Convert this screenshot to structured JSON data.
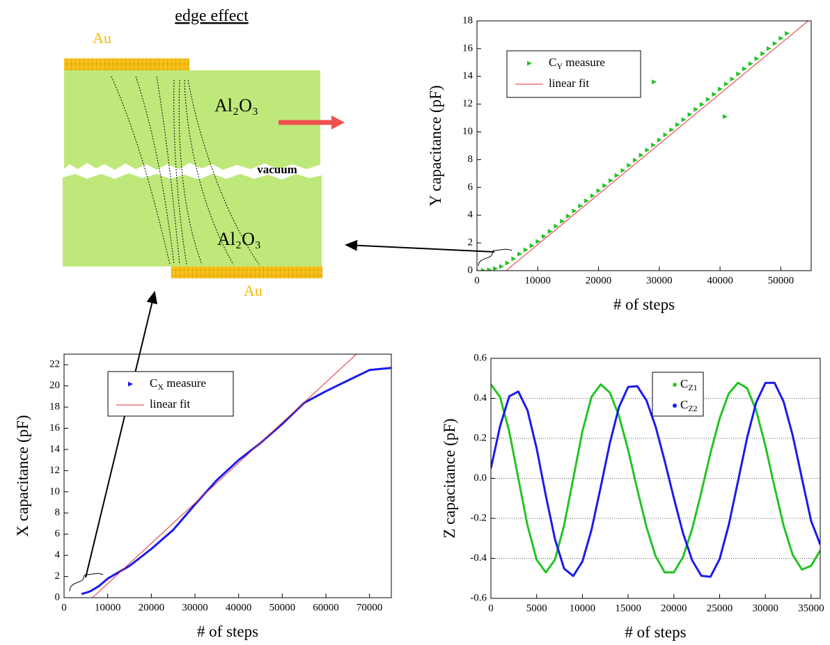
{
  "diagram": {
    "title": "edge effect",
    "labels": [
      "Au",
      "Al₂O₃",
      "vacuum",
      "Al₂O₃",
      "Au"
    ]
  },
  "chart_data": [
    {
      "type": "line",
      "xlabel": "# of steps",
      "ylabel": "Y capacitance (pF)",
      "xlim": [
        0,
        55000
      ],
      "xticks": [
        0,
        10000,
        20000,
        30000,
        40000,
        50000
      ],
      "ylim": [
        0,
        18
      ],
      "yticks": [
        0,
        2,
        4,
        6,
        8,
        10,
        12,
        14,
        16,
        18
      ],
      "grid": false,
      "series": [
        {
          "name": "CY measure",
          "color": "#22c422",
          "style": "markers",
          "marker": "triangle",
          "x": [
            0,
            1000,
            2000,
            3000,
            4000,
            5000,
            6000,
            7000,
            8000,
            9000,
            10000,
            11000,
            12000,
            13000,
            14000,
            15000,
            16000,
            17000,
            18000,
            19000,
            20000,
            21000,
            22000,
            23000,
            24000,
            25000,
            26000,
            27000,
            28000,
            29000,
            29100,
            30000,
            31000,
            32000,
            33000,
            34000,
            35000,
            36000,
            37000,
            38000,
            39000,
            40000,
            40800,
            41000,
            42000,
            43000,
            44000,
            45000,
            46000,
            47000,
            48000,
            49000,
            50000,
            51000
          ],
          "values": [
            0,
            0.02,
            0.06,
            0.15,
            0.3,
            0.55,
            0.85,
            1.2,
            1.5,
            1.8,
            2.1,
            2.47,
            2.83,
            3.2,
            3.56,
            3.93,
            4.3,
            4.66,
            5.03,
            5.39,
            5.76,
            6.13,
            6.49,
            6.86,
            7.22,
            7.59,
            7.96,
            8.32,
            8.69,
            9.05,
            13.6,
            9.42,
            9.79,
            10.15,
            10.52,
            10.88,
            11.25,
            11.62,
            11.98,
            12.35,
            12.71,
            13.08,
            11.1,
            13.45,
            13.81,
            14.18,
            14.54,
            14.91,
            15.28,
            15.64,
            16.01,
            16.37,
            16.74,
            17.1
          ]
        },
        {
          "name": "linear fit",
          "color": "#e03030",
          "style": "line",
          "marker": "line",
          "x": [
            4800,
            54500
          ],
          "values": [
            0,
            18
          ]
        }
      ]
    },
    {
      "type": "line",
      "xlabel": "# of steps",
      "ylabel": "X capacitance (pF)",
      "xlim": [
        0,
        75000
      ],
      "xticks": [
        0,
        10000,
        20000,
        30000,
        40000,
        50000,
        60000,
        70000
      ],
      "ylim": [
        0,
        23
      ],
      "yticks": [
        0,
        2,
        4,
        6,
        8,
        10,
        12,
        14,
        16,
        18,
        20,
        22
      ],
      "grid": false,
      "series": [
        {
          "name": "CX measure",
          "color": "#1a1aee",
          "style": "line",
          "marker": "triangle",
          "x": [
            4000,
            6000,
            8000,
            10000,
            15000,
            20000,
            25000,
            30000,
            35000,
            40000,
            45000,
            50000,
            55000,
            60000,
            65000,
            70000,
            75000
          ],
          "values": [
            0.35,
            0.6,
            1.1,
            1.8,
            3.0,
            4.6,
            6.4,
            8.8,
            11.1,
            13.0,
            14.6,
            16.4,
            18.4,
            19.5,
            20.5,
            21.5,
            21.7
          ]
        },
        {
          "name": "linear fit",
          "color": "#e03030",
          "style": "line",
          "marker": "line",
          "x": [
            6500,
            67000
          ],
          "values": [
            0,
            23
          ]
        }
      ]
    },
    {
      "type": "line",
      "xlabel": "# of steps",
      "ylabel": "Z capacitance (pF)",
      "xlim": [
        0,
        36000
      ],
      "xticks": [
        0,
        5000,
        10000,
        15000,
        20000,
        25000,
        30000,
        35000
      ],
      "ylim": [
        -0.6,
        0.6
      ],
      "yticks": [
        -0.6,
        -0.4,
        -0.2,
        {
          "value": 0,
          "label": "0.0"
        },
        0.2,
        0.4,
        0.6
      ],
      "grid": true,
      "series": [
        {
          "name": "CZ1",
          "color": "#22c422",
          "style": "line",
          "marker": "square",
          "x": [
            0,
            1000,
            2000,
            3000,
            4000,
            5000,
            6000,
            7000,
            8000,
            9000,
            10000,
            11000,
            12000,
            13000,
            14000,
            15000,
            16000,
            17000,
            18000,
            19000,
            20000,
            21000,
            22000,
            23000,
            24000,
            25000,
            26000,
            27000,
            28000,
            29000,
            30000,
            31000,
            32000,
            33000,
            34000,
            35000,
            36000
          ],
          "values": [
            0.47,
            0.407,
            0.235,
            0,
            -0.235,
            -0.407,
            -0.47,
            -0.407,
            -0.235,
            0,
            0.235,
            0.407,
            0.47,
            0.429,
            0.313,
            0.142,
            -0.055,
            -0.243,
            -0.389,
            -0.47,
            -0.47,
            -0.393,
            -0.252,
            -0.069,
            0.126,
            0.299,
            0.424,
            0.478,
            0.451,
            0.339,
            0.163,
            -0.042,
            -0.237,
            -0.384,
            -0.456,
            -0.437,
            -0.36
          ]
        },
        {
          "name": "CZ2",
          "color": "#1a1aee",
          "style": "line",
          "marker": "circle",
          "x": [
            0,
            1000,
            2000,
            3000,
            4000,
            5000,
            6000,
            7000,
            8000,
            9000,
            10000,
            11000,
            12000,
            13000,
            14000,
            15000,
            16000,
            17000,
            18000,
            19000,
            20000,
            21000,
            22000,
            23000,
            24000,
            25000,
            26000,
            27000,
            28000,
            29000,
            30000,
            31000,
            32000,
            33000,
            34000,
            35000,
            36000
          ],
          "values": [
            0.05,
            0.26,
            0.41,
            0.434,
            0.34,
            0.15,
            -0.085,
            -0.304,
            -0.451,
            -0.488,
            -0.416,
            -0.257,
            -0.044,
            0.176,
            0.356,
            0.457,
            0.461,
            0.39,
            0.259,
            0.087,
            -0.099,
            -0.274,
            -0.41,
            -0.487,
            -0.492,
            -0.403,
            -0.233,
            -0.016,
            0.202,
            0.379,
            0.477,
            0.478,
            0.383,
            0.212,
            0,
            -0.213,
            -0.33
          ]
        }
      ]
    }
  ]
}
